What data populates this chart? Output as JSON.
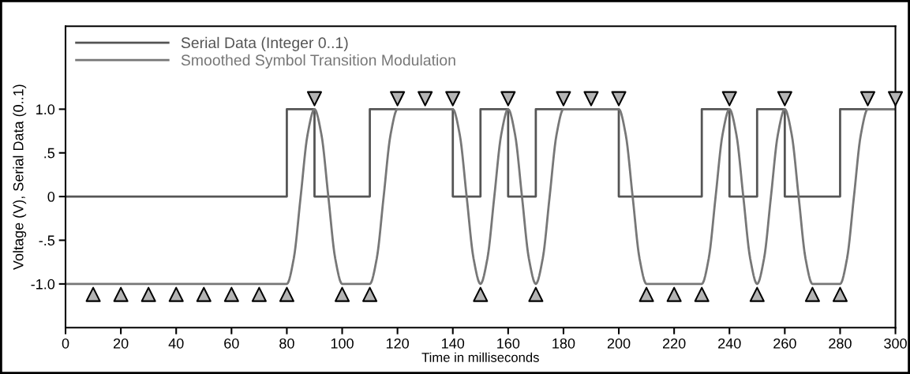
{
  "chart_data": {
    "type": "line",
    "xlabel": "Time in milliseconds",
    "ylabel": "Voltage (V), Serial Data (0..1)",
    "xlim": [
      0,
      300
    ],
    "xticks": [
      0,
      20,
      40,
      60,
      80,
      100,
      120,
      140,
      160,
      180,
      200,
      220,
      240,
      260,
      280,
      300
    ],
    "ylim": [
      -1.5,
      1.95
    ],
    "yticks": [
      {
        "value": -1.0,
        "label": "-1.0"
      },
      {
        "value": -0.5,
        "label": "-.5"
      },
      0,
      {
        "value": 0.5,
        "label": ".5"
      },
      {
        "value": 1.0,
        "label": "1.0"
      }
    ],
    "grid": false,
    "legend": "top left",
    "line_style": "solid",
    "series": [
      {
        "name": "Serial Data (Integer 0..1)",
        "type": "step",
        "color": "#555555",
        "x": [
          0,
          10,
          20,
          30,
          40,
          50,
          60,
          70,
          80,
          90,
          100,
          110,
          120,
          130,
          140,
          150,
          160,
          170,
          180,
          190,
          200,
          210,
          220,
          230,
          240,
          250,
          260,
          270,
          280,
          290,
          300
        ],
        "values": [
          0,
          0,
          0,
          0,
          0,
          0,
          0,
          0,
          1,
          0,
          0,
          1,
          1,
          1,
          0,
          1,
          0,
          1,
          1,
          1,
          0,
          0,
          0,
          1,
          0,
          1,
          0,
          0,
          1,
          1,
          1
        ]
      },
      {
        "name": "Smoothed Symbol Transition Modulation",
        "color": "#777777",
        "x": [
          0,
          2.5,
          5,
          7.5,
          10,
          12.5,
          15,
          17.5,
          20,
          22.5,
          25,
          27.5,
          30,
          32.5,
          35,
          37.5,
          40,
          42.5,
          45,
          47.5,
          50,
          52.5,
          55,
          57.5,
          60,
          62.5,
          65,
          67.5,
          70,
          72.5,
          75,
          77.5,
          80,
          82.5,
          85,
          87.5,
          90,
          92.5,
          95,
          97.5,
          100,
          102.5,
          105,
          107.5,
          110,
          112.5,
          115,
          117.5,
          120,
          122.5,
          125,
          127.5,
          130,
          132.5,
          135,
          137.5,
          140,
          142.5,
          145,
          147.5,
          150,
          152.5,
          155,
          157.5,
          160,
          162.5,
          165,
          167.5,
          170,
          172.5,
          175,
          177.5,
          180,
          182.5,
          185,
          187.5,
          190,
          192.5,
          195,
          197.5,
          200,
          202.5,
          205,
          207.5,
          210,
          212.5,
          215,
          217.5,
          220,
          222.5,
          225,
          227.5,
          230,
          232.5,
          235,
          237.5,
          240,
          242.5,
          245,
          247.5,
          250,
          252.5,
          255,
          257.5,
          260,
          262.5,
          265,
          267.5,
          270,
          272.5,
          275,
          277.5,
          280,
          282.5,
          285,
          287.5,
          290,
          292.5,
          295,
          297.5,
          300
        ],
        "values": [
          -1,
          -1,
          -1,
          -1,
          -1,
          -1,
          -1,
          -1,
          -1,
          -1,
          -1,
          -1,
          -1,
          -1,
          -1,
          -1,
          -1,
          -1,
          -1,
          -1,
          -1,
          -1,
          -1,
          -1,
          -1,
          -1,
          -1,
          -1,
          -1,
          -1,
          -1,
          -1,
          -1,
          -0.71,
          0,
          0.71,
          1,
          0.71,
          0,
          -0.71,
          -1,
          -1,
          -1,
          -1,
          -1,
          -0.71,
          0,
          0.71,
          1,
          1,
          1,
          1,
          1,
          1,
          1,
          1,
          1,
          0.71,
          0,
          -0.71,
          -1,
          -0.71,
          0,
          0.71,
          1,
          0.71,
          0,
          -0.71,
          -1,
          -0.71,
          0,
          0.71,
          1,
          1,
          1,
          1,
          1,
          1,
          1,
          1,
          1,
          0.71,
          0,
          -0.71,
          -1,
          -1,
          -1,
          -1,
          -1,
          -1,
          -1,
          -1,
          -1,
          -0.71,
          0,
          0.71,
          1,
          0.71,
          0,
          -0.71,
          -1,
          -0.71,
          0,
          0.71,
          1,
          0.71,
          0,
          -0.71,
          -1,
          -1,
          -1,
          -1,
          -1,
          -0.71,
          0,
          0.71,
          1,
          1,
          1,
          1,
          1
        ]
      },
      {
        "type": "scatter",
        "marker": "triangle_down",
        "color": "#b4b4b4",
        "x": [
          90,
          120,
          130,
          140,
          160,
          180,
          190,
          200,
          240,
          260,
          290,
          300
        ],
        "values": [
          1.12,
          1.12,
          1.12,
          1.12,
          1.12,
          1.12,
          1.12,
          1.12,
          1.12,
          1.12,
          1.12,
          1.12
        ]
      },
      {
        "type": "scatter",
        "marker": "triangle",
        "color": "#b4b4b4",
        "x": [
          10,
          20,
          30,
          40,
          50,
          60,
          70,
          80,
          100,
          110,
          150,
          170,
          210,
          220,
          230,
          250,
          270,
          280
        ],
        "values": [
          -1.12,
          -1.12,
          -1.12,
          -1.12,
          -1.12,
          -1.12,
          -1.12,
          -1.12,
          -1.12,
          -1.12,
          -1.12,
          -1.12,
          -1.12,
          -1.12,
          -1.12,
          -1.12,
          -1.12,
          -1.12
        ]
      }
    ]
  }
}
